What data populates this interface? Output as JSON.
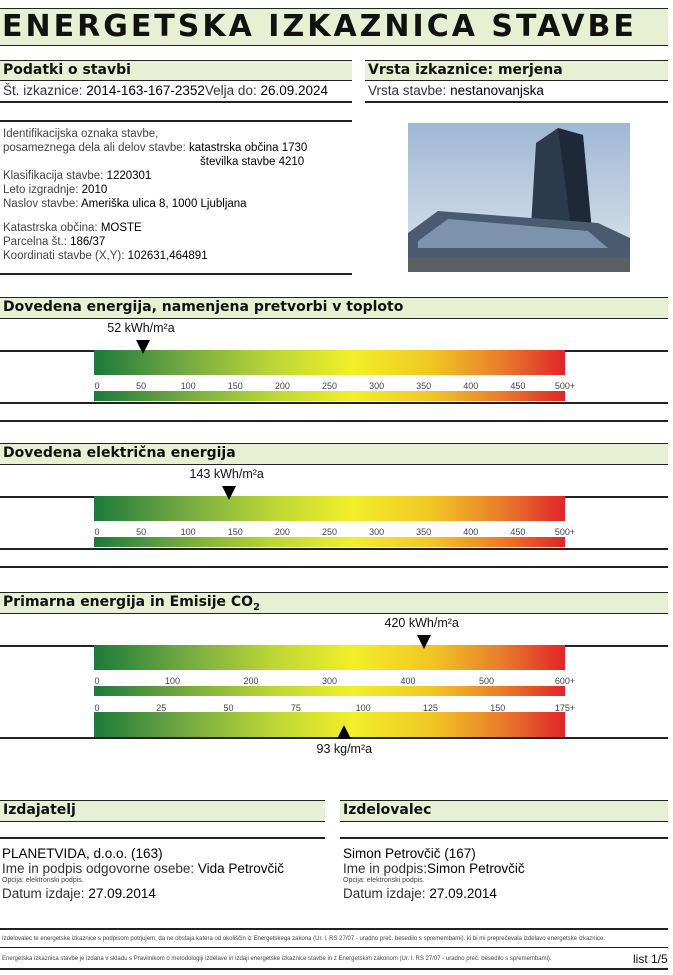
{
  "title": "ENERGETSKA IZKAZNICA STAVBE",
  "building": {
    "header": "Podatki o stavbi",
    "id_label": "Št. izkaznice:",
    "id": "2014-163-167-2352",
    "valid_label": "Velja do:",
    "valid": "26.09.2024",
    "ident_label1": "Identifikacijska oznaka stavbe,",
    "ident_label2": "posameznega dela ali delov stavbe:",
    "ident_value1": "katastrska občina 1730",
    "ident_value2": "številka stavbe 4210",
    "class_label": "Klasifikacija stavbe:",
    "class": "1220301",
    "year_label": "Leto izgradnje:",
    "year": "2010",
    "address_label": "Naslov stavbe:",
    "address": "Ameriška ulica 8, 1000 Ljubljana",
    "ko_label": "Katastrska občina:",
    "ko": "MOSTE",
    "parcel_label": "Parcelna št.:",
    "parcel": "186/37",
    "coords_label": "Koordinati stavbe (X,Y):",
    "coords": "102631,464891"
  },
  "type": {
    "header": "Vrsta izkaznice: merjena",
    "building_type_label": "Vrsta stavbe:",
    "building_type": "nestanovanjska"
  },
  "sections": [
    {
      "header": "Dovedena energija, namenjena pretvorbi v toploto",
      "value": 52,
      "max": 500,
      "label": "52 kWh/m²a",
      "ticks": [
        "0",
        "50",
        "100",
        "150",
        "200",
        "250",
        "300",
        "350",
        "400",
        "450",
        "500+"
      ]
    },
    {
      "header": "Dovedena električna energija",
      "value": 143,
      "max": 500,
      "label": "143 kWh/m²a",
      "ticks": [
        "0",
        "50",
        "100",
        "150",
        "200",
        "250",
        "300",
        "350",
        "400",
        "450",
        "500+"
      ]
    },
    {
      "header": "Primarna energija in Emisije CO",
      "header_sub": "2",
      "value": 420,
      "max": 600,
      "label": "420 kWh/m²a",
      "ticks": [
        "0",
        "100",
        "200",
        "300",
        "400",
        "500",
        "600+"
      ],
      "co2_value": 93,
      "co2_max": 175,
      "co2_label": "93 kg/m²a",
      "co2_ticks": [
        "0",
        "25",
        "50",
        "75",
        "100",
        "125",
        "150",
        "175+"
      ]
    }
  ],
  "issuer": {
    "header": "Izdajatelj",
    "name": "PLANETVIDA, d.o.o. (163)",
    "person_label": "Ime in podpis odgovorne osebe:",
    "person": "Vida Petrovčič",
    "note": "Opcija: elektronski podpis.",
    "date_label": "Datum izdaje:",
    "date": "27.09.2014"
  },
  "maker": {
    "header": "Izdelovalec",
    "name": "Simon Petrovčič (167)",
    "person_label": "Ime in podpis:",
    "person": "Simon Petrovčič",
    "note": "Opcija: elektronski podpis.",
    "date_label": "Datum izdaje:",
    "date": "27.09.2014"
  },
  "footer": {
    "line1": "Izdelovalec te energetske izkaznice s podpisom potrjujem, da ne obstaja katera od okoliščin iz Energetskega zakona (Ur. l. RS 27/07 - uradno preč. besedilo s spremembami), ki bi mi preprečevala izdelavo energetske izkaznice.",
    "line2": "Energetska izkaznica stavbe je izdana v skladu s Pravilnikom o metodologiji izdelave in izdaji energetske izkaznice stavbe in z Energetskim zakonom (Ur. l. RS 27/07 - uradno preč. besedilo s spremembami).",
    "page": "list 1/5"
  },
  "colors": {
    "band": "#e8f0d4",
    "scale_low": "#1d7a3a",
    "scale_mid": "#f2ef2a",
    "scale_high": "#e02428"
  }
}
